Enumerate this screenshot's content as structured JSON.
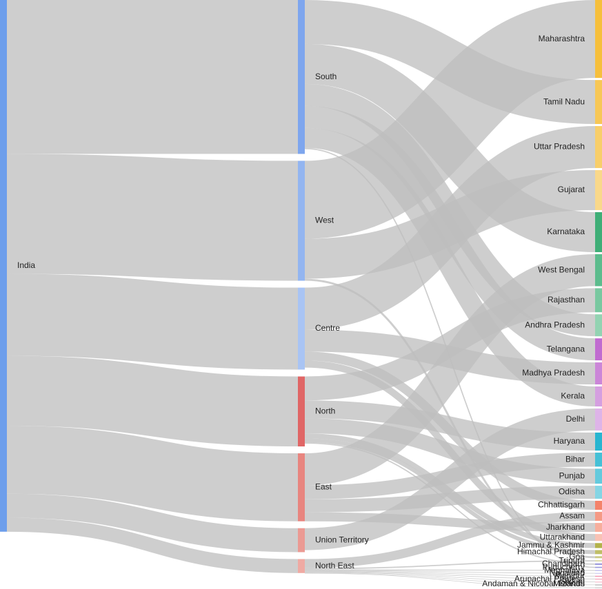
{
  "chart_data": {
    "type": "sankey",
    "title": "",
    "columns": [
      [
        "India"
      ],
      [
        "South",
        "West",
        "Centre",
        "North",
        "East",
        "Union Territory",
        "North East"
      ],
      [
        "Maharashtra",
        "Tamil Nadu",
        "Uttar Pradesh",
        "Gujarat",
        "Karnataka",
        "West Bengal",
        "Rajasthan",
        "Andhra Pradesh",
        "Telangana",
        "Madhya Pradesh",
        "Kerala",
        "Delhi",
        "Haryana",
        "Bihar",
        "Punjab",
        "Odisha",
        "Chhattisgarh",
        "Assam",
        "Jharkhand",
        "Uttarakhand",
        "Jammu & Kashmir",
        "Himachal Pradesh",
        "Goa",
        "Tripura",
        "Chandigarh",
        "Puducherry",
        "Meghalaya",
        "Nagaland",
        "Manipur",
        "Arunachal Pradesh",
        "Sikkim",
        "Mizoram",
        "Andaman & Nicobar Islands"
      ]
    ],
    "node_colors": {
      "India": "#6d9eeb",
      "South": "#7ea6ee",
      "West": "#93b5f0",
      "Centre": "#a9c4f4",
      "North": "#e06666",
      "East": "#e8857f",
      "Union Territory": "#eb9a93",
      "North East": "#efaaa3",
      "Maharashtra": "#f6bf3c",
      "Tamil Nadu": "#f7c756",
      "Uttar Pradesh": "#f8ce6a",
      "Gujarat": "#f9d88a",
      "Karnataka": "#3fae77",
      "West Bengal": "#5cbc8d",
      "Rajasthan": "#79c8a0",
      "Andhra Pradesh": "#93d3b2",
      "Telangana": "#c06bd0",
      "Madhya Pradesh": "#cb86d8",
      "Kerala": "#d59fe0",
      "Delhi": "#deb4e8",
      "Haryana": "#28b5d0",
      "Bihar": "#45c0d6",
      "Punjab": "#64cadd",
      "Odisha": "#85d5e4",
      "Chhattisgarh": "#f4836a",
      "Assam": "#f59a85",
      "Jharkhand": "#f7ae9c",
      "Uttarakhand": "#f9c2b4",
      "Jammu & Kashmir": "#b3b24a",
      "Himachal Pradesh": "#bfbe67",
      "Goa": "#cbca85",
      "Tripura": "#d7d7a3",
      "Chandigarh": "#8b87d6",
      "Puducherry": "#a09ddf",
      "Meghalaya": "#b6b3e7",
      "Nagaland": "#cbc9ef",
      "Manipur": "#f08aa6",
      "Arunachal Pradesh": "#f3a3b9",
      "Sikkim": "#f6bccc",
      "Mizoram": "#b0b0b0",
      "Andaman & Nicobar Islands": "#c8c8c8"
    },
    "links": [
      {
        "source": "India",
        "target": "South",
        "value": 77
      },
      {
        "source": "India",
        "target": "West",
        "value": 60
      },
      {
        "source": "India",
        "target": "Centre",
        "value": 41
      },
      {
        "source": "India",
        "target": "North",
        "value": 35
      },
      {
        "source": "India",
        "target": "East",
        "value": 34
      },
      {
        "source": "India",
        "target": "Union Territory",
        "value": 12
      },
      {
        "source": "India",
        "target": "North East",
        "value": 7
      },
      {
        "source": "South",
        "target": "Tamil Nadu",
        "value": 22
      },
      {
        "source": "South",
        "target": "Karnataka",
        "value": 20
      },
      {
        "source": "South",
        "target": "Andhra Pradesh",
        "value": 11
      },
      {
        "source": "South",
        "target": "Telangana",
        "value": 11
      },
      {
        "source": "South",
        "target": "Kerala",
        "value": 10
      },
      {
        "source": "South",
        "target": "Puducherry",
        "value": 0.6
      },
      {
        "source": "West",
        "target": "Maharashtra",
        "value": 39
      },
      {
        "source": "West",
        "target": "Gujarat",
        "value": 20
      },
      {
        "source": "West",
        "target": "Goa",
        "value": 1
      },
      {
        "source": "Centre",
        "target": "Uttar Pradesh",
        "value": 21
      },
      {
        "source": "Centre",
        "target": "Madhya Pradesh",
        "value": 11
      },
      {
        "source": "Centre",
        "target": "Chhattisgarh",
        "value": 4.5
      },
      {
        "source": "Centre",
        "target": "Uttarakhand",
        "value": 3.5
      },
      {
        "source": "North",
        "target": "Rajasthan",
        "value": 12
      },
      {
        "source": "North",
        "target": "Haryana",
        "value": 9
      },
      {
        "source": "North",
        "target": "Punjab",
        "value": 7.5
      },
      {
        "source": "North",
        "target": "Jammu & Kashmir",
        "value": 2.5
      },
      {
        "source": "North",
        "target": "Himachal Pradesh",
        "value": 2
      },
      {
        "source": "North",
        "target": "Chandigarh",
        "value": 0.6
      },
      {
        "source": "East",
        "target": "West Bengal",
        "value": 16
      },
      {
        "source": "East",
        "target": "Bihar",
        "value": 7
      },
      {
        "source": "East",
        "target": "Odisha",
        "value": 6.5
      },
      {
        "source": "East",
        "target": "Jharkhand",
        "value": 4.5
      },
      {
        "source": "Union Territory",
        "target": "Delhi",
        "value": 11
      },
      {
        "source": "North East",
        "target": "Assam",
        "value": 4.5
      },
      {
        "source": "North East",
        "target": "Tripura",
        "value": 0.6
      },
      {
        "source": "North East",
        "target": "Meghalaya",
        "value": 0.4
      },
      {
        "source": "North East",
        "target": "Nagaland",
        "value": 0.3
      },
      {
        "source": "North East",
        "target": "Manipur",
        "value": 0.3
      },
      {
        "source": "North East",
        "target": "Arunachal Pradesh",
        "value": 0.3
      },
      {
        "source": "North East",
        "target": "Sikkim",
        "value": 0.3
      },
      {
        "source": "North East",
        "target": "Mizoram",
        "value": 0.2
      },
      {
        "source": "North East",
        "target": "Andaman & Nicobar Islands",
        "value": 0.1
      }
    ]
  }
}
